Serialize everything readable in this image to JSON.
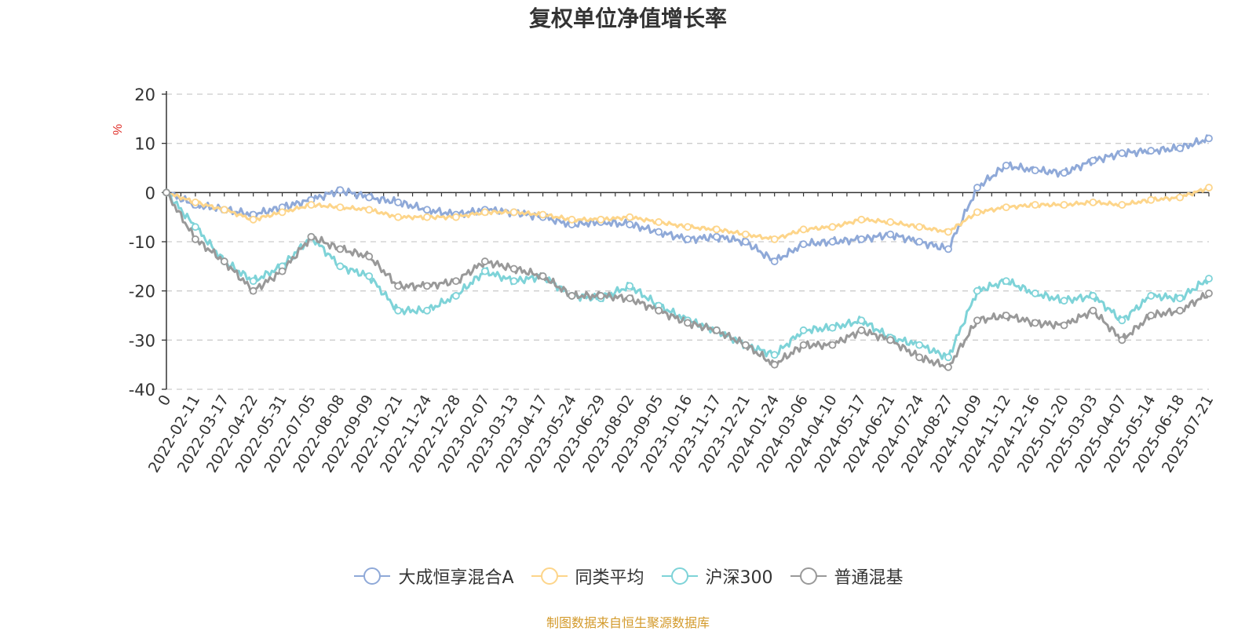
{
  "chart_data": {
    "type": "line",
    "title": "复权单位净值增长率",
    "ylabel": "%",
    "ylim": [
      -40,
      20
    ],
    "yticks": [
      20,
      10,
      0,
      -10,
      -20,
      -30,
      -40
    ],
    "x_ticks": [
      "0",
      "2022-02-11",
      "2022-03-17",
      "2022-04-22",
      "2022-05-31",
      "2022-07-05",
      "2022-08-08",
      "2022-09-09",
      "2022-10-21",
      "2022-11-24",
      "2022-12-28",
      "2023-02-07",
      "2023-03-13",
      "2023-04-17",
      "2023-05-24",
      "2023-06-29",
      "2023-08-02",
      "2023-09-05",
      "2023-10-16",
      "2023-11-17",
      "2023-12-21",
      "2024-01-24",
      "2024-03-06",
      "2024-04-10",
      "2024-05-17",
      "2024-06-21",
      "2024-07-24",
      "2024-08-27",
      "2024-10-09",
      "2024-11-12",
      "2024-12-16",
      "2025-01-20",
      "2025-03-03",
      "2025-04-07",
      "2025-05-14",
      "2025-06-18",
      "2025-07-21"
    ],
    "grid": true,
    "legend_position": "bottom",
    "series": [
      {
        "name": "大成恒享混合A",
        "color": "#8fa9d8",
        "values": [
          0,
          -2.5,
          -3.5,
          -4.5,
          -3,
          -1.5,
          0.5,
          -1,
          -2,
          -3.5,
          -4.5,
          -3.5,
          -4,
          -5,
          -6.5,
          -6,
          -6.5,
          -8,
          -9.5,
          -9,
          -10,
          -14,
          -10.5,
          -10,
          -9.5,
          -8.5,
          -10,
          -11.5,
          1,
          5.5,
          4.5,
          4,
          6.5,
          8,
          8.5,
          9,
          11
        ]
      },
      {
        "name": "同类平均",
        "color": "#fdd58a",
        "values": [
          0,
          -2,
          -3.5,
          -5.5,
          -4,
          -2.5,
          -3,
          -3.5,
          -5,
          -5,
          -5,
          -4,
          -4,
          -4.5,
          -5.5,
          -5.5,
          -5,
          -6,
          -7,
          -7.5,
          -8.5,
          -9.5,
          -7.5,
          -7,
          -5.5,
          -6,
          -7,
          -8,
          -4,
          -3,
          -2.5,
          -2.5,
          -2,
          -2.5,
          -1.5,
          -1,
          1
        ]
      },
      {
        "name": "沪深300",
        "color": "#7ed3d8",
        "values": [
          0,
          -7,
          -14,
          -18,
          -15,
          -9,
          -15,
          -17,
          -24,
          -24,
          -21,
          -16,
          -18,
          -17,
          -21,
          -21.5,
          -19,
          -23,
          -26,
          -28,
          -31,
          -33,
          -28,
          -27.5,
          -26,
          -29.5,
          -31,
          -33.5,
          -20,
          -18,
          -20.5,
          -22,
          -21,
          -26,
          -21,
          -21.5,
          -17.5
        ]
      },
      {
        "name": "普通混基",
        "color": "#999999",
        "values": [
          0,
          -9.5,
          -14,
          -20,
          -16,
          -9,
          -11.5,
          -13,
          -19,
          -19,
          -18,
          -14,
          -15.5,
          -17,
          -21,
          -21,
          -21.5,
          -24,
          -26.5,
          -28,
          -31,
          -35,
          -31,
          -31,
          -28,
          -30,
          -33.5,
          -35.5,
          -26,
          -25,
          -26.5,
          -27,
          -24,
          -30,
          -25,
          -24,
          -20.5
        ]
      }
    ]
  },
  "source": "制图数据来自恒生聚源数据库"
}
